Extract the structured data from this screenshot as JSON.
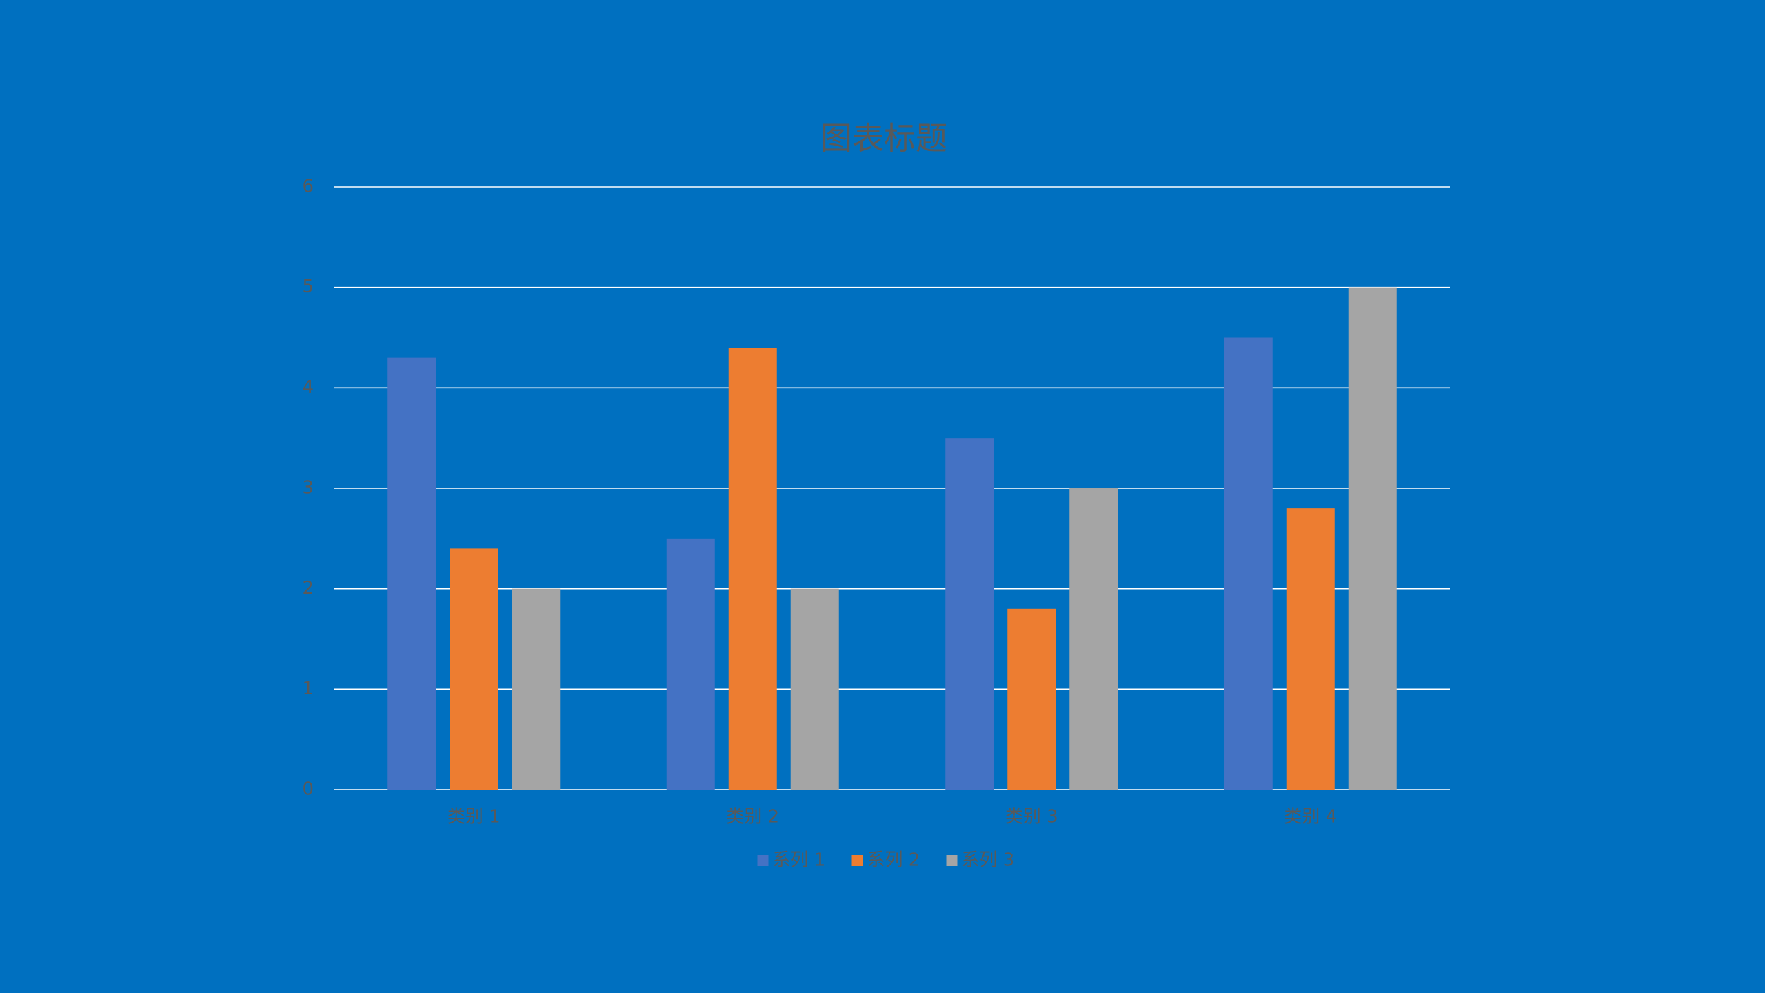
{
  "chart_data": {
    "type": "bar",
    "title": "图表标题",
    "categories": [
      "类别 1",
      "类别 2",
      "类别 3",
      "类别 4"
    ],
    "series": [
      {
        "name": "系列 1",
        "color": "#4472c4",
        "values": [
          4.3,
          2.5,
          3.5,
          4.5
        ]
      },
      {
        "name": "系列 2",
        "color": "#ed7d31",
        "values": [
          2.4,
          4.4,
          1.8,
          2.8
        ]
      },
      {
        "name": "系列 3",
        "color": "#a5a5a5",
        "values": [
          2,
          2,
          3,
          5
        ]
      }
    ],
    "ylim": [
      0,
      6
    ],
    "yticks": [
      0,
      1,
      2,
      3,
      4,
      5,
      6
    ],
    "grid": true,
    "legend": "bottom"
  }
}
